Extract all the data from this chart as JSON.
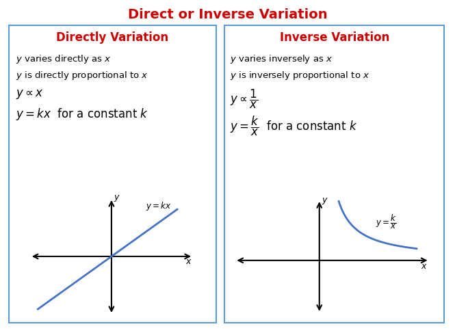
{
  "title": "Direct or Inverse Variation",
  "title_color": "#cc0000",
  "title_fontsize": 14,
  "left_heading": "Directly Variation",
  "right_heading": "Inverse Variation",
  "heading_color": "#cc0000",
  "heading_fontsize": 12,
  "text_color": "#000000",
  "box_edge_color": "#5b9bd5",
  "background_color": "#ffffff",
  "left_text1": "$y$ varies directly as $x$",
  "left_text2": "$y$ is directly proportional to $x$",
  "left_text3": "$y \\propto x$",
  "left_text4": "$y = kx$  for a constant $k$",
  "right_text1": "$y$ varies inversely as $x$",
  "right_text2": "$y$ is inversely proportional to $x$",
  "right_text3": "$y \\propto \\dfrac{1}{x}$",
  "right_text4": "$y = \\dfrac{k}{x}$  for a constant $k$",
  "left_graph_label": "$y = kx$",
  "right_graph_label": "$y = \\dfrac{k}{x}$",
  "graph_line_color": "#4472c4",
  "axis_color": "#000000"
}
